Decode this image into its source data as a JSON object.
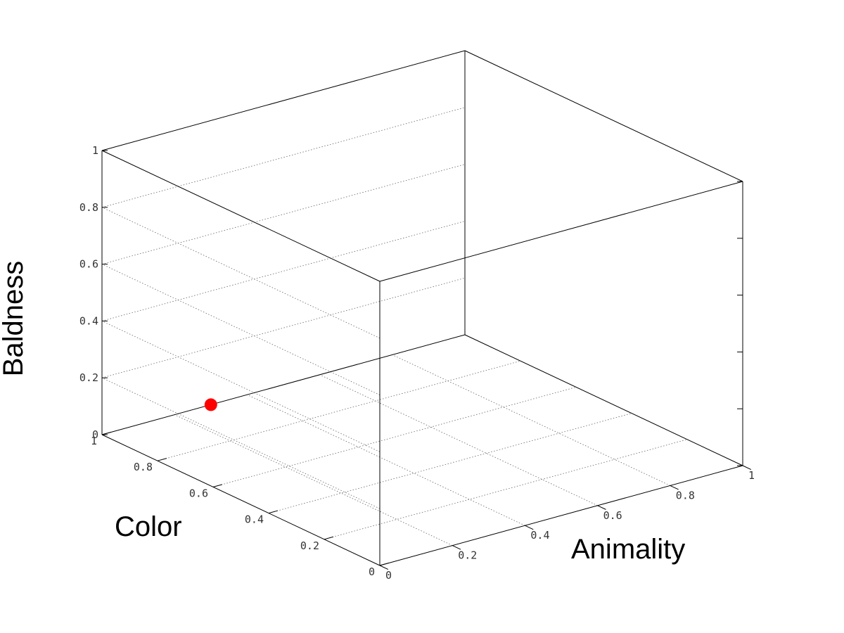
{
  "chart_data": {
    "type": "scatter",
    "dimensions": 3,
    "xlabel": "Animality",
    "ylabel": "Color",
    "zlabel": "Baldness",
    "xlim": [
      0,
      1
    ],
    "ylim": [
      0,
      1
    ],
    "zlim": [
      0,
      1
    ],
    "x_ticks": [
      "0",
      "0.2",
      "0.4",
      "0.6",
      "0.8",
      "1"
    ],
    "y_ticks": [
      "0",
      "0.2",
      "0.4",
      "0.6",
      "0.8",
      "1"
    ],
    "z_ticks": [
      "0",
      "0.2",
      "0.4",
      "0.6",
      "0.8",
      "1"
    ],
    "grid": true,
    "points": [
      {
        "x": 0.3,
        "y": 1.0,
        "z": 0.0,
        "color": "#ff0000"
      }
    ]
  }
}
